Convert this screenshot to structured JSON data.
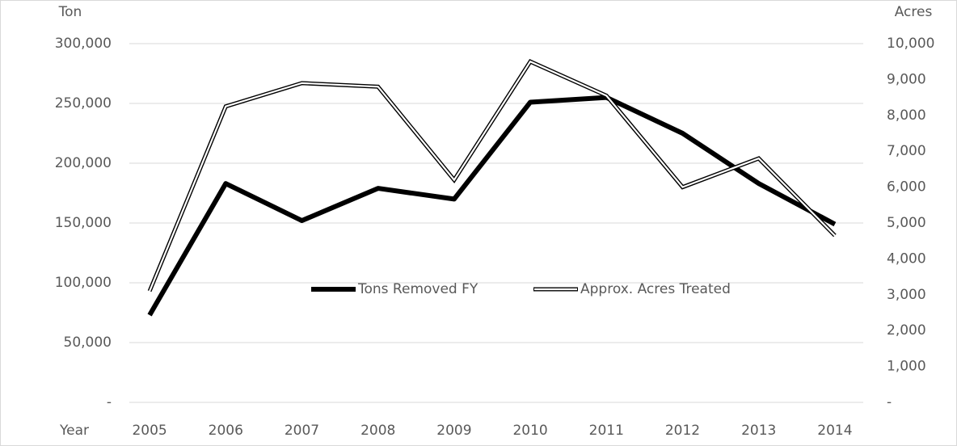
{
  "chart_data": {
    "type": "line",
    "y_label": "Ton",
    "y2_label": "Acres",
    "x_label": "Year",
    "categories": [
      "2005",
      "2006",
      "2007",
      "2008",
      "2009",
      "2010",
      "2011",
      "2012",
      "2013",
      "2014"
    ],
    "series": [
      {
        "name": "Tons Removed FY",
        "color": "#000000",
        "style": "thick",
        "values": [
          73000,
          183000,
          152000,
          179000,
          170000,
          251000,
          255000,
          225000,
          183000,
          149000
        ]
      },
      {
        "name": "Approx. Acres Treated",
        "color": "#000000",
        "style": "double",
        "axis": "y2",
        "values": [
          3100,
          8250,
          8900,
          8800,
          6200,
          9500,
          8550,
          6000,
          6800,
          4650
        ]
      }
    ],
    "ylim": [
      0,
      300000
    ],
    "yticks": [
      {
        "value": 0,
        "label": "-"
      },
      {
        "value": 50000,
        "label": "50,000"
      },
      {
        "value": 100000,
        "label": "100,000"
      },
      {
        "value": 150000,
        "label": "150,000"
      },
      {
        "value": 200000,
        "label": "200,000"
      },
      {
        "value": 250000,
        "label": "250,000"
      },
      {
        "value": 300000,
        "label": "300,000"
      }
    ],
    "y2lim": [
      0,
      10000
    ],
    "y2ticks": [
      {
        "value": 0,
        "label": "-"
      },
      {
        "value": 1000,
        "label": "1,000"
      },
      {
        "value": 2000,
        "label": "2,000"
      },
      {
        "value": 3000,
        "label": "3,000"
      },
      {
        "value": 4000,
        "label": "4,000"
      },
      {
        "value": 5000,
        "label": "5,000"
      },
      {
        "value": 6000,
        "label": "6,000"
      },
      {
        "value": 7000,
        "label": "7,000"
      },
      {
        "value": 8000,
        "label": "8,000"
      },
      {
        "value": 9000,
        "label": "9,000"
      },
      {
        "value": 10000,
        "label": "10,000"
      }
    ],
    "grid": true,
    "legend": "center"
  }
}
